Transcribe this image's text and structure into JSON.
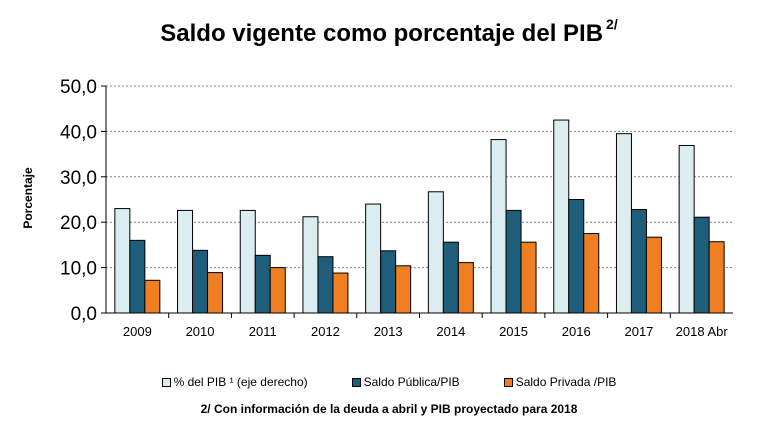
{
  "chart_data": {
    "type": "bar",
    "title": "Saldo vigente como porcentaje del PIB",
    "title_note": "2/",
    "ylabel": "Porcentaje",
    "ylim": [
      0,
      50
    ],
    "yticks": [
      "0,0",
      "10,0",
      "20,0",
      "30,0",
      "40,0",
      "50,0"
    ],
    "grid": true,
    "legend_position": "bottom",
    "categories": [
      "2009",
      "2010",
      "2011",
      "2012",
      "2013",
      "2014",
      "2015",
      "2016",
      "2017",
      "2018 Abr"
    ],
    "series": [
      {
        "name": "% del PIB ¹ (eje derecho)",
        "color": "#dcedf1",
        "values": [
          23.0,
          22.6,
          22.6,
          21.2,
          24.0,
          26.7,
          38.2,
          42.5,
          39.5,
          36.9
        ]
      },
      {
        "name": "Saldo Pública/PIB",
        "color": "#1f5e7a",
        "values": [
          16.0,
          13.8,
          12.7,
          12.4,
          13.7,
          15.6,
          22.6,
          25.0,
          22.8,
          21.1
        ]
      },
      {
        "name": "Saldo Privada /PIB",
        "color": "#f07f21",
        "values": [
          7.2,
          8.9,
          10.0,
          8.8,
          10.4,
          11.1,
          15.6,
          17.5,
          16.7,
          15.7
        ]
      }
    ]
  },
  "footnote": "2/ Con información de la deuda a abril y PIB proyectado para  2018"
}
